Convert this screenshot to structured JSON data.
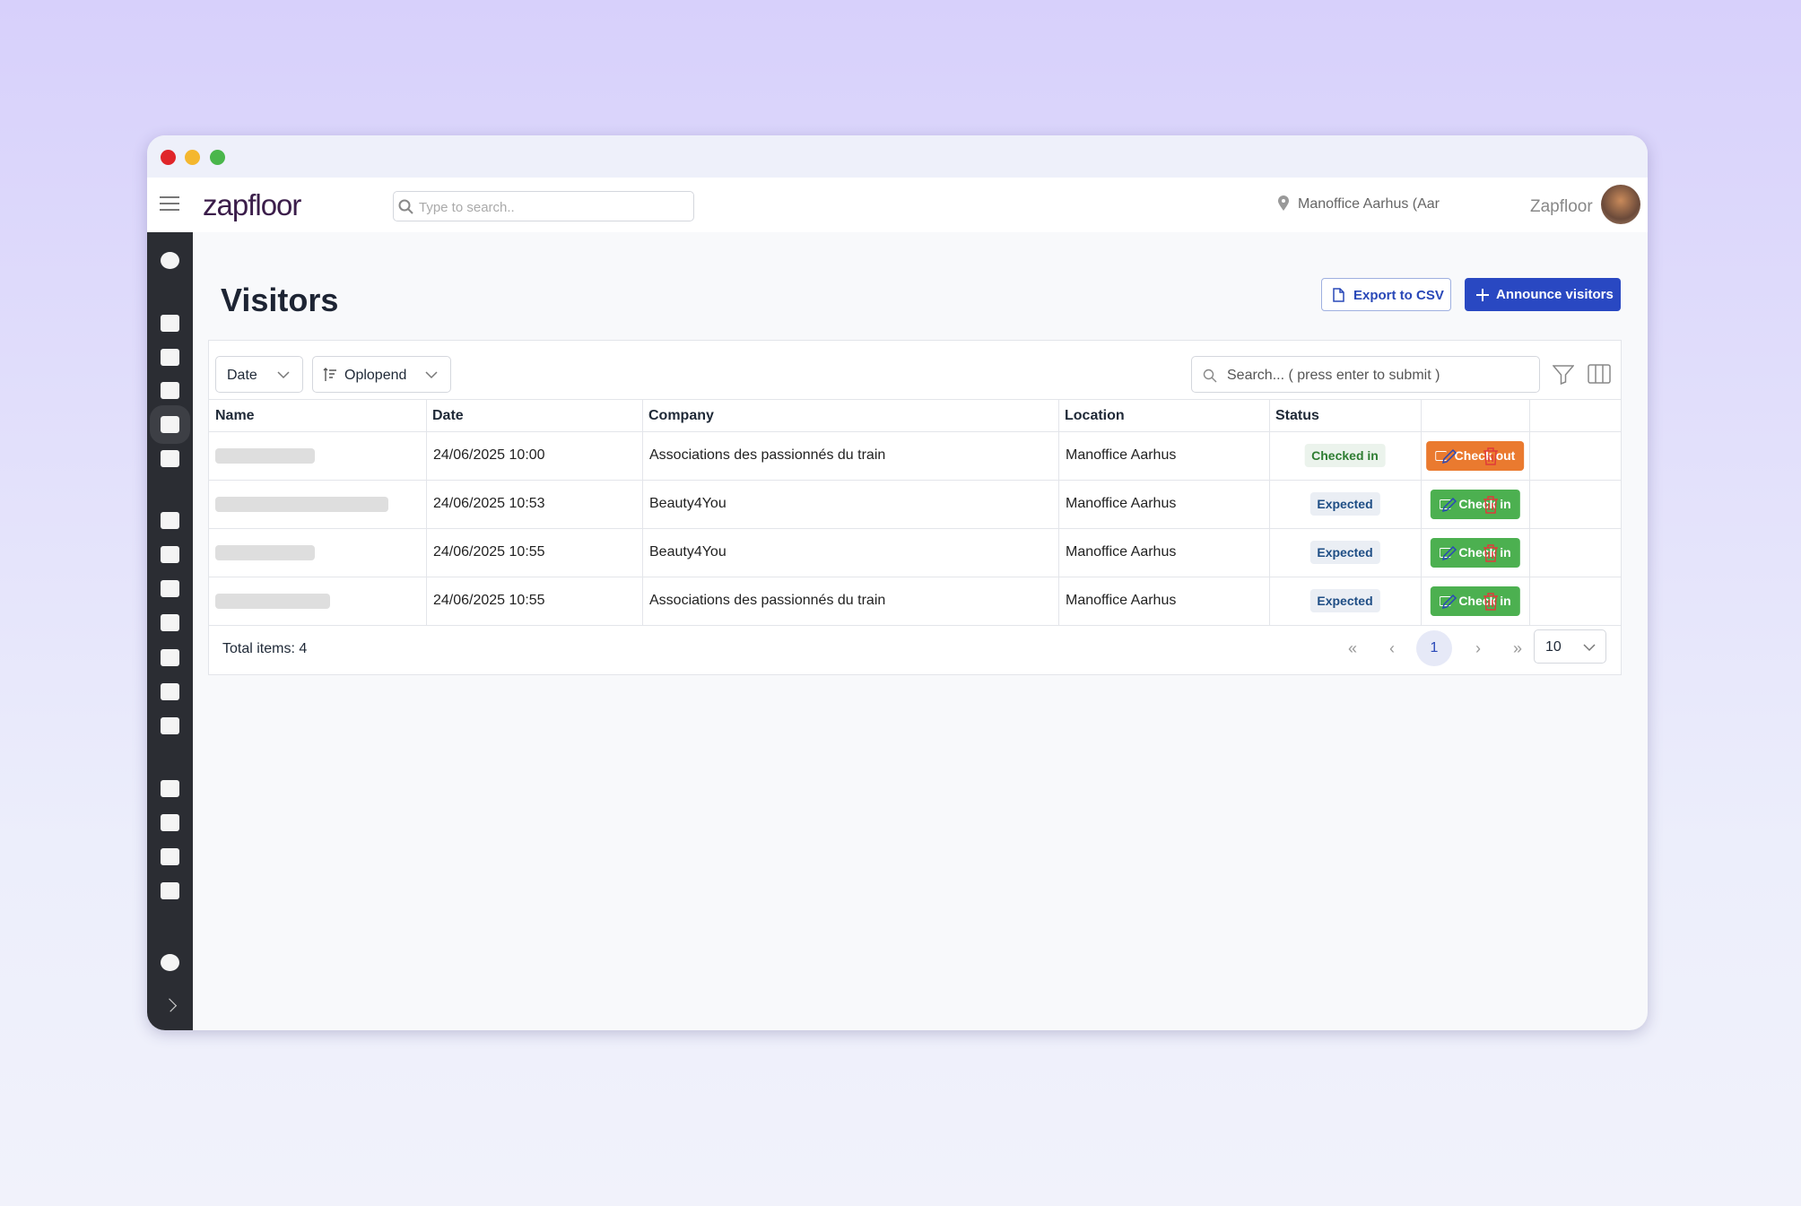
{
  "header": {
    "logo": "zapfloor",
    "search_placeholder": "Type to search..",
    "location": "Manoffice Aarhus (Aar",
    "user": "Zapfloor"
  },
  "page": {
    "title": "Visitors",
    "export_button": "Export to CSV",
    "announce_button": "Announce visitors"
  },
  "filters": {
    "date": "Date",
    "sort": "Oplopend",
    "search_placeholder": "Search... ( press enter to submit )"
  },
  "table": {
    "columns": [
      "Name",
      "Date",
      "Company",
      "Location",
      "Status"
    ],
    "rows": [
      {
        "date": "24/06/2025 10:00",
        "company": "Associations des passionnés du train",
        "location": "Manoffice Aarhus",
        "status": "Checked in",
        "status_color": "#2e7d32",
        "action": "Check out",
        "action_color": "#ea7a2f"
      },
      {
        "date": "24/06/2025 10:53",
        "company": "Beauty4You",
        "location": "Manoffice Aarhus",
        "status": "Expected",
        "status_color": "#1f4e85",
        "action": "Check in",
        "action_color": "#4cb050"
      },
      {
        "date": "24/06/2025 10:55",
        "company": "Beauty4You",
        "location": "Manoffice Aarhus",
        "status": "Expected",
        "status_color": "#1f4e85",
        "action": "Check in",
        "action_color": "#4cb050"
      },
      {
        "date": "24/06/2025 10:55",
        "company": "Associations des passionnés du train",
        "location": "Manoffice Aarhus",
        "status": "Expected",
        "status_color": "#1f4e85",
        "action": "Check in",
        "action_color": "#4cb050"
      }
    ]
  },
  "footer": {
    "total": "Total items: 4",
    "current_page": "1",
    "page_size": "10"
  }
}
